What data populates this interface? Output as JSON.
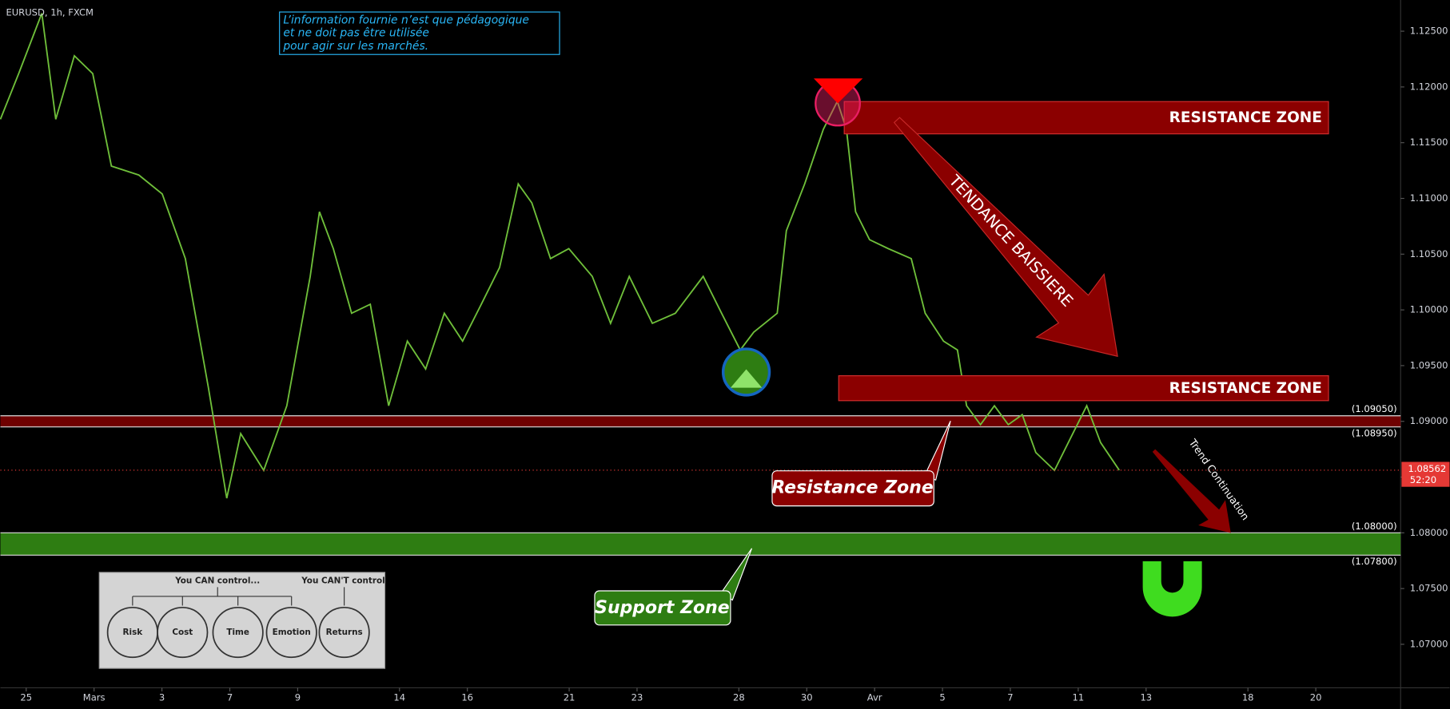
{
  "chart_data": {
    "type": "line",
    "title": "EURUSD, 1h, FXCM",
    "x": [
      -0.76,
      -0.22,
      0.46,
      0.87,
      1.42,
      1.96,
      2.51,
      3.32,
      4.01,
      4.69,
      5.37,
      5.91,
      6.32,
      7.0,
      7.68,
      8.37,
      8.64,
      9.05,
      9.59,
      10.14,
      10.68,
      11.23,
      11.77,
      12.32,
      12.86,
      13.41,
      13.95,
      14.5,
      14.9,
      15.45,
      15.99,
      16.68,
      17.22,
      17.77,
      18.45,
      19.13,
      19.95,
      20.49,
      21.04,
      21.44,
      22.13,
      22.4,
      22.94,
      23.49,
      23.9,
      24.17,
      24.44,
      24.85,
      25.4,
      26.08,
      26.49,
      27.03,
      27.44,
      27.71,
      28.12,
      28.53,
      28.94,
      29.35,
      29.75,
      30.3,
      30.84,
      31.25,
      31.66,
      32.21
    ],
    "values": [
      1.1171,
      1.1212,
      1.1266,
      1.1171,
      1.1228,
      1.1212,
      1.1129,
      1.1121,
      1.1104,
      1.1046,
      1.093,
      1.0831,
      1.0889,
      1.0856,
      1.0914,
      1.103,
      1.1088,
      1.1055,
      1.0997,
      1.1005,
      1.0914,
      1.0972,
      1.0947,
      1.0997,
      1.0972,
      1.1005,
      1.1038,
      1.1113,
      1.1096,
      1.1046,
      1.1055,
      1.103,
      1.0988,
      1.103,
      1.0988,
      1.0997,
      1.103,
      1.0997,
      1.0964,
      1.098,
      1.0997,
      1.1071,
      1.1113,
      1.1162,
      1.1187,
      1.1162,
      1.1088,
      1.1063,
      1.1055,
      1.1046,
      1.0997,
      1.0972,
      1.0964,
      1.0914,
      1.0897,
      1.0914,
      1.0897,
      1.0906,
      1.0872,
      1.0856,
      1.0889,
      1.0914,
      1.0881,
      1.08562
    ],
    "color": "#6fbf3a",
    "xlim": [
      -0.76,
      40.5
    ],
    "ylim": [
      1.0661,
      1.1278
    ],
    "xticks": [
      {
        "value": 0,
        "label": "25"
      },
      {
        "value": 2,
        "label": "Mars"
      },
      {
        "value": 4,
        "label": "3"
      },
      {
        "value": 6,
        "label": "7"
      },
      {
        "value": 8,
        "label": "9"
      },
      {
        "value": 11,
        "label": "14"
      },
      {
        "value": 13,
        "label": "16"
      },
      {
        "value": 16,
        "label": "21"
      },
      {
        "value": 18,
        "label": "23"
      },
      {
        "value": 21,
        "label": "28"
      },
      {
        "value": 23,
        "label": "30"
      },
      {
        "value": 25,
        "label": "Avr"
      },
      {
        "value": 27,
        "label": "5"
      },
      {
        "value": 29,
        "label": "7"
      },
      {
        "value": 31,
        "label": "11"
      },
      {
        "value": 33,
        "label": "13"
      },
      {
        "value": 36,
        "label": "18"
      },
      {
        "value": 38,
        "label": "20"
      }
    ],
    "yticks": [
      {
        "value": 1.07,
        "label": "1.07000"
      },
      {
        "value": 1.075,
        "label": "1.07500"
      },
      {
        "value": 1.08,
        "label": "1.08000"
      },
      {
        "value": 1.085,
        "label": "1.08500"
      },
      {
        "value": 1.09,
        "label": "1.09000"
      },
      {
        "value": 1.095,
        "label": "1.09500"
      },
      {
        "value": 1.1,
        "label": "1.10000"
      },
      {
        "value": 1.105,
        "label": "1.10500"
      },
      {
        "value": 1.11,
        "label": "1.11000"
      },
      {
        "value": 1.115,
        "label": "1.11500"
      },
      {
        "value": 1.12,
        "label": "1.12000"
      },
      {
        "value": 1.125,
        "label": "1.12500"
      }
    ],
    "levels": [
      {
        "value": 1.0905,
        "label": "(1.09050)"
      },
      {
        "value": 1.0895,
        "label": "(1.08950)"
      },
      {
        "value": 1.08,
        "label": "(1.08000)"
      },
      {
        "value": 1.078,
        "label": "(1.07800)"
      }
    ],
    "zone_colors": [
      "#8b0000",
      "#2e7d12"
    ],
    "last_price": {
      "value": 1.08562,
      "label": "1.08562"
    },
    "countdown": "52:20",
    "annotations": {
      "disclaimer": [
        "L’information fournie n’est que pédagogique",
        "et ne doit pas être utilisée",
        "pour agir sur les marchés."
      ],
      "resistance_top": "RESISTANCE ZONE",
      "resistance_mid": "RESISTANCE ZONE",
      "trend": "TENDANCE BAISSIERE",
      "resistance_callout": "Resistance Zone",
      "support_callout": "Support Zone",
      "continuation": "Trend Continuation",
      "inset": {
        "can": "You CAN control...",
        "cant": "You CAN'T control",
        "circles": [
          "Risk",
          "Cost",
          "Time",
          "Emotion",
          "Returns"
        ]
      }
    }
  }
}
